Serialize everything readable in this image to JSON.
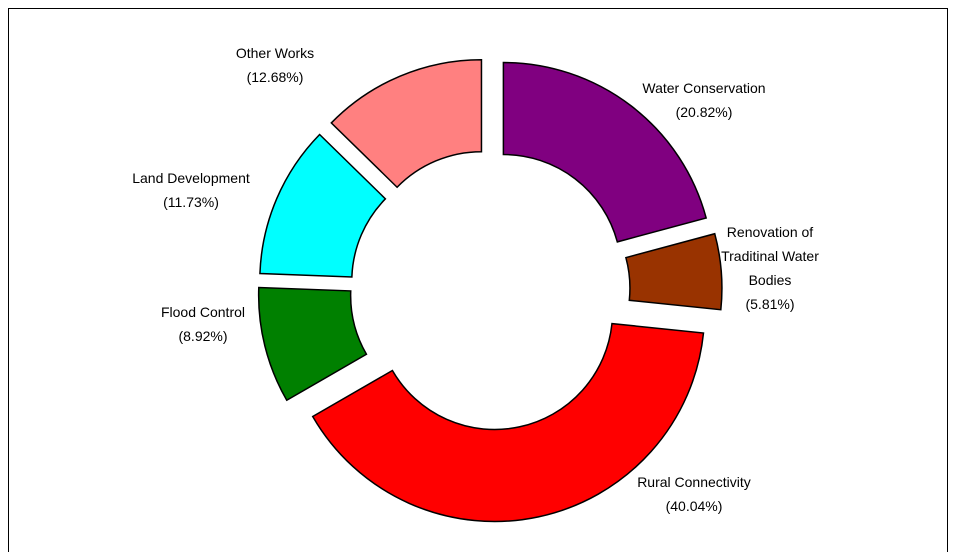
{
  "chart_data": {
    "type": "donut",
    "categories": [
      "Water Conservation",
      "Renovation of Traditinal Water Bodies",
      "Rural Connectivity",
      "Flood Control",
      "Land Development",
      "Other Works"
    ],
    "values": [
      20.82,
      5.81,
      40.04,
      8.92,
      11.73,
      12.68
    ],
    "value_labels": [
      "(20.82%)",
      "(5.81%)",
      "(40.04%)",
      "(8.92%)",
      "(11.73%)",
      "(12.68%)"
    ],
    "colors": [
      "#800080",
      "#993300",
      "#ff0000",
      "#008000",
      "#00ffff",
      "#ff8080"
    ]
  }
}
